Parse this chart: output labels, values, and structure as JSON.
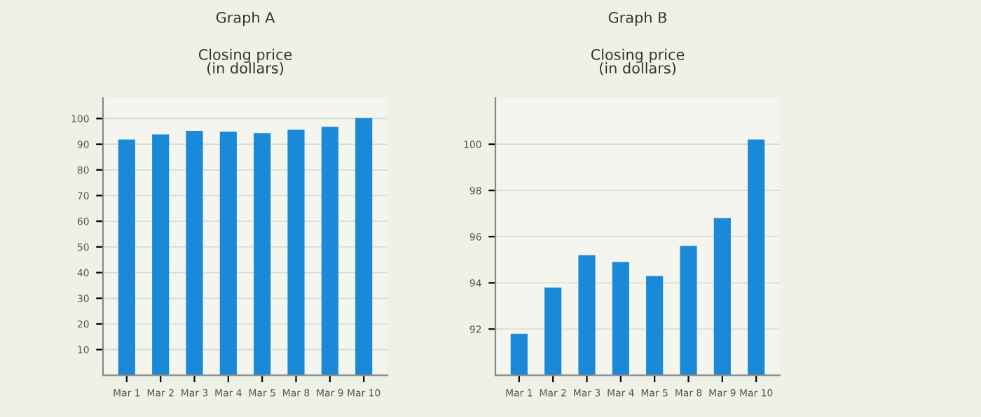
{
  "chart_data": [
    {
      "type": "bar",
      "title": "Graph A",
      "ylabel": "Closing price\n(in dollars)",
      "categories": [
        "Mar 1",
        "Mar 2",
        "Mar 3",
        "Mar 4",
        "Mar 5",
        "Mar 8",
        "Mar 9",
        "Mar 10"
      ],
      "values": [
        91.8,
        93.8,
        95.2,
        94.9,
        94.3,
        95.6,
        96.8,
        100.2
      ],
      "color": "#1a8ad8",
      "ylim": [
        0,
        108
      ],
      "yticks": [
        10,
        20,
        30,
        40,
        50,
        60,
        70,
        80,
        90,
        100
      ],
      "grid": "y"
    },
    {
      "type": "bar",
      "title": "Graph B",
      "ylabel": "Closing price\n(in dollars)",
      "categories": [
        "Mar 1",
        "Mar 2",
        "Mar 3",
        "Mar 4",
        "Mar 5",
        "Mar 8",
        "Mar 9",
        "Mar 10"
      ],
      "values": [
        91.8,
        93.8,
        95.2,
        94.9,
        94.3,
        95.6,
        96.8,
        100.2
      ],
      "color": "#1a8ad8",
      "ylim": [
        90,
        102
      ],
      "yticks": [
        92,
        94,
        96,
        98,
        100
      ],
      "grid": "y"
    }
  ]
}
